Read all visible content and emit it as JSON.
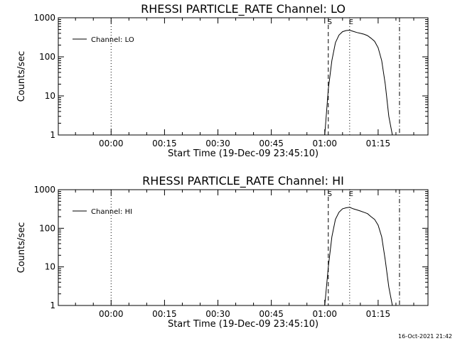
{
  "chart_data": [
    {
      "type": "line",
      "title": "RHESSI PARTICLE_RATE Channel: LO",
      "xlabel": "Start Time (19-Dec-09 23:45:10)",
      "ylabel": "Counts/sec",
      "y_scale": "log",
      "ylim": [
        1,
        1000
      ],
      "xlim": [
        "23:45:10",
        "01:29:00"
      ],
      "x_ticks": [
        "00:00",
        "00:15",
        "00:30",
        "00:45",
        "01:00",
        "01:15"
      ],
      "y_ticks": [
        "1",
        "10",
        "100",
        "1000"
      ],
      "legend": {
        "position": "top-left",
        "entries": [
          "Channel: LO"
        ]
      },
      "markers": [
        {
          "time": "00:00",
          "style": "dotted",
          "label": ""
        },
        {
          "time": "01:01",
          "style": "dashed",
          "label": "S"
        },
        {
          "time": "01:07",
          "style": "dotted",
          "label": "E"
        },
        {
          "time": "01:21",
          "style": "dashdot",
          "label": ""
        }
      ],
      "series": [
        {
          "name": "Channel: LO",
          "x": [
            "01:00",
            "01:01",
            "01:02",
            "01:03",
            "01:04",
            "01:05",
            "01:06",
            "01:07",
            "01:08",
            "01:09",
            "01:10",
            "01:11",
            "01:12",
            "01:13",
            "01:14",
            "01:15",
            "01:16",
            "01:17",
            "01:18",
            "01:19"
          ],
          "y": [
            1,
            15,
            80,
            230,
            360,
            440,
            470,
            480,
            450,
            420,
            400,
            380,
            350,
            300,
            250,
            170,
            80,
            20,
            3,
            1
          ]
        }
      ]
    },
    {
      "type": "line",
      "title": "RHESSI PARTICLE_RATE Channel: HI",
      "xlabel": "Start Time (19-Dec-09 23:45:10)",
      "ylabel": "Counts/sec",
      "y_scale": "log",
      "ylim": [
        1,
        1000
      ],
      "xlim": [
        "23:45:10",
        "01:29:00"
      ],
      "x_ticks": [
        "00:00",
        "00:15",
        "00:30",
        "00:45",
        "01:00",
        "01:15"
      ],
      "y_ticks": [
        "1",
        "10",
        "100",
        "1000"
      ],
      "legend": {
        "position": "top-left",
        "entries": [
          "Channel: HI"
        ]
      },
      "markers": [
        {
          "time": "00:00",
          "style": "dotted",
          "label": ""
        },
        {
          "time": "01:01",
          "style": "dashed",
          "label": "S"
        },
        {
          "time": "01:07",
          "style": "dotted",
          "label": "E"
        },
        {
          "time": "01:21",
          "style": "dashdot",
          "label": ""
        }
      ],
      "series": [
        {
          "name": "Channel: HI",
          "x": [
            "01:00",
            "01:01",
            "01:02",
            "01:03",
            "01:04",
            "01:05",
            "01:06",
            "01:07",
            "01:08",
            "01:09",
            "01:10",
            "01:11",
            "01:12",
            "01:13",
            "01:14",
            "01:15",
            "01:16",
            "01:17",
            "01:18",
            "01:19"
          ],
          "y": [
            1,
            10,
            60,
            170,
            260,
            320,
            340,
            350,
            320,
            300,
            280,
            260,
            240,
            200,
            170,
            120,
            60,
            15,
            3,
            1
          ]
        }
      ]
    }
  ],
  "footer": {
    "timestamp": "16-Oct-2021 21:42"
  }
}
